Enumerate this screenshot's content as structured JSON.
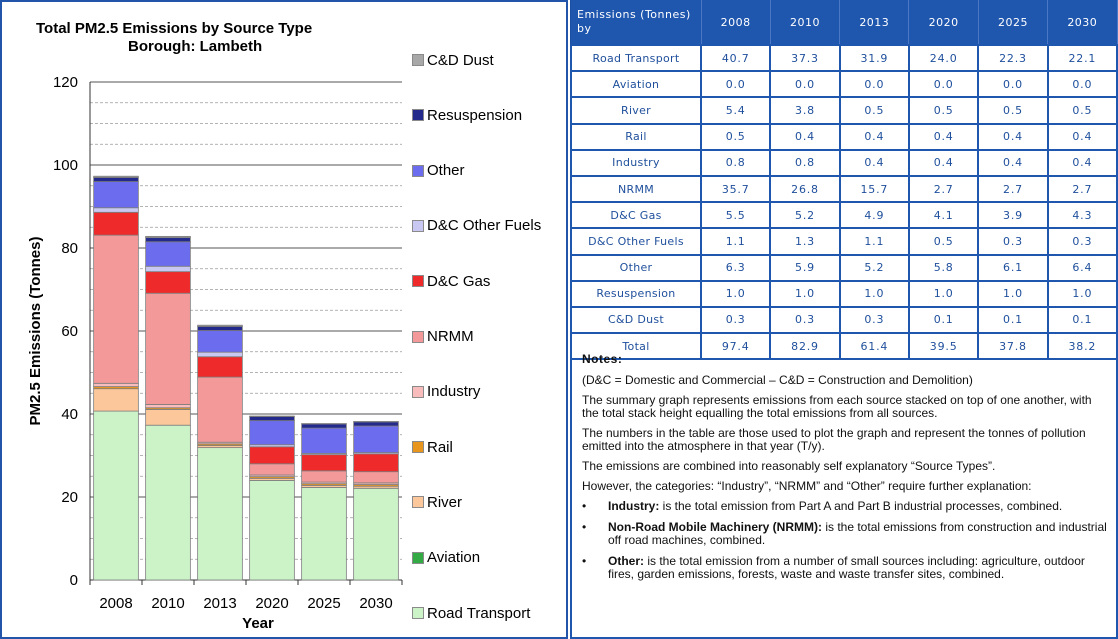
{
  "chart_data": {
    "type": "bar",
    "stacked": true,
    "title": "Total PM2.5 Emissions  by Source Type",
    "subtitle": "Borough:  Lambeth",
    "xlabel": "Year",
    "ylabel": "PM2.5 Emissions  (Tonnes)",
    "ylim": [
      0,
      120
    ],
    "yticks": [
      0,
      20,
      40,
      60,
      80,
      100,
      120
    ],
    "minor_gridlines_every": 5,
    "legend_position": "right",
    "categories": [
      "2008",
      "2010",
      "2013",
      "2020",
      "2025",
      "2030"
    ],
    "series": [
      {
        "name": "Road Transport",
        "color": "#ccf2c8",
        "values": [
          40.7,
          37.3,
          31.9,
          24.0,
          22.3,
          22.1
        ]
      },
      {
        "name": "Aviation",
        "color": "#33aa44",
        "values": [
          0.0,
          0.0,
          0.0,
          0.0,
          0.0,
          0.0
        ]
      },
      {
        "name": "River",
        "color": "#fcc79a",
        "values": [
          5.4,
          3.8,
          0.5,
          0.5,
          0.5,
          0.5
        ]
      },
      {
        "name": "Rail",
        "color": "#e8951e",
        "values": [
          0.5,
          0.4,
          0.4,
          0.4,
          0.4,
          0.4
        ]
      },
      {
        "name": "Industry",
        "color": "#f9bcbc",
        "values": [
          0.8,
          0.8,
          0.4,
          0.4,
          0.4,
          0.4
        ]
      },
      {
        "name": "NRMM",
        "color": "#f4999a",
        "values": [
          35.7,
          26.8,
          15.7,
          2.7,
          2.7,
          2.7
        ]
      },
      {
        "name": "D&C Gas",
        "color": "#ee2a2a",
        "values": [
          5.5,
          5.2,
          4.9,
          4.1,
          3.9,
          4.3
        ]
      },
      {
        "name": "D&C Other Fuels",
        "color": "#c8c8f2",
        "values": [
          1.1,
          1.3,
          1.1,
          0.5,
          0.3,
          0.3
        ]
      },
      {
        "name": "Other",
        "color": "#6c6cee",
        "values": [
          6.3,
          5.9,
          5.2,
          5.8,
          6.1,
          6.4
        ]
      },
      {
        "name": "Resuspension",
        "color": "#232a8c",
        "values": [
          1.0,
          1.0,
          1.0,
          1.0,
          1.0,
          1.0
        ]
      },
      {
        "name": "C&D Dust",
        "color": "#a8a8a8",
        "values": [
          0.3,
          0.3,
          0.3,
          0.1,
          0.1,
          0.1
        ]
      }
    ]
  },
  "table": {
    "header_label": "Emissions (Tonnes) by",
    "years": [
      "2008",
      "2010",
      "2013",
      "2020",
      "2025",
      "2030"
    ],
    "rows": [
      {
        "label": "Road Transport",
        "values": [
          "40.7",
          "37.3",
          "31.9",
          "24.0",
          "22.3",
          "22.1"
        ]
      },
      {
        "label": "Aviation",
        "values": [
          "0.0",
          "0.0",
          "0.0",
          "0.0",
          "0.0",
          "0.0"
        ]
      },
      {
        "label": "River",
        "values": [
          "5.4",
          "3.8",
          "0.5",
          "0.5",
          "0.5",
          "0.5"
        ]
      },
      {
        "label": "Rail",
        "values": [
          "0.5",
          "0.4",
          "0.4",
          "0.4",
          "0.4",
          "0.4"
        ]
      },
      {
        "label": "Industry",
        "values": [
          "0.8",
          "0.8",
          "0.4",
          "0.4",
          "0.4",
          "0.4"
        ]
      },
      {
        "label": "NRMM",
        "values": [
          "35.7",
          "26.8",
          "15.7",
          "2.7",
          "2.7",
          "2.7"
        ]
      },
      {
        "label": "D&C Gas",
        "values": [
          "5.5",
          "5.2",
          "4.9",
          "4.1",
          "3.9",
          "4.3"
        ]
      },
      {
        "label": "D&C Other Fuels",
        "values": [
          "1.1",
          "1.3",
          "1.1",
          "0.5",
          "0.3",
          "0.3"
        ]
      },
      {
        "label": "Other",
        "values": [
          "6.3",
          "5.9",
          "5.2",
          "5.8",
          "6.1",
          "6.4"
        ]
      },
      {
        "label": "Resuspension",
        "values": [
          "1.0",
          "1.0",
          "1.0",
          "1.0",
          "1.0",
          "1.0"
        ]
      },
      {
        "label": "C&D Dust",
        "values": [
          "0.3",
          "0.3",
          "0.3",
          "0.1",
          "0.1",
          "0.1"
        ]
      },
      {
        "label": "Total",
        "values": [
          "97.4",
          "82.9",
          "61.4",
          "39.5",
          "37.8",
          "38.2"
        ]
      }
    ]
  },
  "notes": {
    "title": "Notes:",
    "paragraphs": [
      "(D&C = Domestic and Commercial – C&D = Construction and Demolition)",
      "The summary graph represents emissions from each source stacked on top of one another, with the total stack height equalling the total emissions from all sources.",
      "The numbers in the table are those used to plot the graph and represent the tonnes of pollution emitted into the atmosphere in that year (T/y).",
      "The emissions are combined into reasonably self explanatory “Source Types”.",
      "However, the categories: “Industry”, “NRMM” and “Other” require further explanation:"
    ],
    "bullets": [
      {
        "term": "Industry:",
        "text": " is the total emission from Part A and Part B industrial processes, combined."
      },
      {
        "term": "Non-Road Mobile Machinery (NRMM):",
        "text": " is the total emissions from construction and industrial off road machines, combined."
      },
      {
        "term": "Other:",
        "text": " is the total emission from a number of small sources including: agriculture, outdoor fires, garden emissions, forests, waste and waste transfer sites, combined."
      }
    ]
  }
}
